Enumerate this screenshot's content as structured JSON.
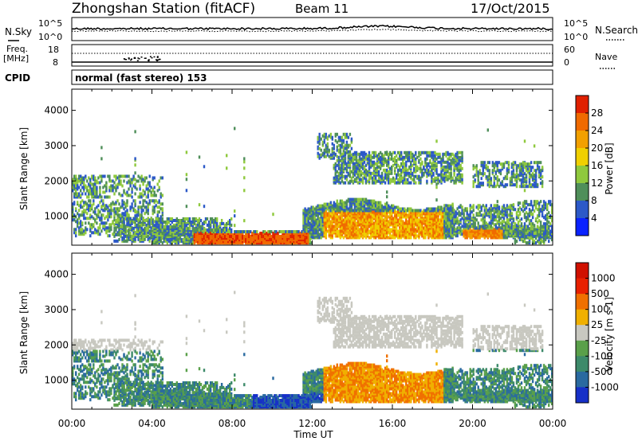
{
  "header": {
    "station": "Zhongshan Station (fitACF)",
    "beam": "Beam 11",
    "date": "17/Oct/2015"
  },
  "noise_panel": {
    "left_label": "N.Sky",
    "left_top": "10^5",
    "left_bottom": "10^0",
    "right_label": "N.Search",
    "right_top": "10^5",
    "right_bottom": "10^0"
  },
  "freq_panel": {
    "left_label_1": "Freq.",
    "left_label_2": "[MHz]",
    "left_top": "18",
    "left_bottom": "8",
    "right_label": "Nave",
    "right_top": "60",
    "right_bottom": "0"
  },
  "cpid": {
    "label": "CPID",
    "text": "normal (fast stereo) 153"
  },
  "chart_data": [
    {
      "type": "heatmap",
      "title": "",
      "ylabel": "Slant Range [km]",
      "ylim": [
        180,
        4600
      ],
      "y_ticks": [
        "1000",
        "2000",
        "3000",
        "4000"
      ],
      "x_ticks": [
        "00:00",
        "04:00",
        "08:00",
        "12:00",
        "16:00",
        "20:00",
        "00:00"
      ],
      "colorbar": {
        "label": "Power [dB]",
        "ticks": [
          "4",
          "8",
          "12",
          "16",
          "20",
          "24",
          "28"
        ],
        "colors": [
          "#0a22ff",
          "#2c59c8",
          "#4f8f5a",
          "#8fc93d",
          "#f0d000",
          "#f2a000",
          "#f06a00",
          "#e02000"
        ]
      }
    },
    {
      "type": "heatmap",
      "title": "",
      "ylabel": "Slant Range [km]",
      "xlabel": "Time UT",
      "ylim": [
        180,
        4600
      ],
      "y_ticks": [
        "1000",
        "2000",
        "3000",
        "4000"
      ],
      "x_ticks": [
        "00:00",
        "04:00",
        "08:00",
        "12:00",
        "16:00",
        "20:00",
        "00:00"
      ],
      "colorbar": {
        "label": "Velocity [m s-1]",
        "ticks": [
          "1000",
          "500",
          "100",
          "25",
          "-25",
          "-100",
          "-500",
          "-1000"
        ],
        "colors": [
          "#1630c8",
          "#2a6aa0",
          "#3d8a6a",
          "#5aa04a",
          "#c8c8c0",
          "#f0b000",
          "#f07000",
          "#e82000",
          "#d01000"
        ]
      }
    }
  ]
}
